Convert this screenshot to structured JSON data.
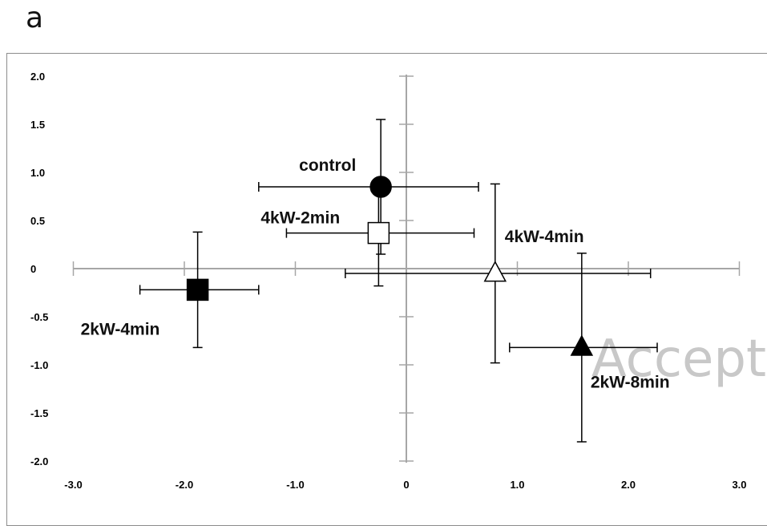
{
  "panel_label": "a",
  "watermark": "Accept",
  "chart_data": {
    "type": "scatter",
    "title": "",
    "xlabel": "",
    "ylabel": "",
    "xlim": [
      -3.0,
      3.0
    ],
    "ylim": [
      -2.0,
      2.0
    ],
    "x_ticks": [
      -3.0,
      -2.0,
      -1.0,
      0,
      1.0,
      2.0,
      3.0
    ],
    "x_tick_labels": [
      "-3.0",
      "-2.0",
      "-1.0",
      "0",
      "1.0",
      "2.0",
      "3.0"
    ],
    "y_ticks": [
      2.0,
      1.5,
      1.0,
      0.5,
      0,
      -0.5,
      -1.0,
      -1.5,
      -2.0
    ],
    "y_tick_labels": [
      "2.0",
      "1.5",
      "1.0",
      "0.5",
      "0",
      "-0.5",
      "-1.0",
      "-1.5",
      "-2.0"
    ],
    "grid": false,
    "legend": "none",
    "points": [
      {
        "label": "control",
        "marker": "circle",
        "fill": "#000000",
        "x": -0.23,
        "y": 0.85,
        "x_err_low": 1.1,
        "x_err_high": 0.88,
        "y_err_low": 0.7,
        "y_err_high": 0.7
      },
      {
        "label": "4kW-2min",
        "marker": "square",
        "fill": "#ffffff",
        "x": -0.25,
        "y": 0.37,
        "x_err_low": 0.83,
        "x_err_high": 0.86,
        "y_err_low": 0.55,
        "y_err_high": 0.55
      },
      {
        "label": "4kW-4min",
        "marker": "triangle",
        "fill": "#ffffff",
        "x": 0.8,
        "y": -0.05,
        "x_err_low": 1.35,
        "x_err_high": 1.4,
        "y_err_low": 0.93,
        "y_err_high": 0.93
      },
      {
        "label": "2kW-4min",
        "marker": "square",
        "fill": "#000000",
        "x": -1.88,
        "y": -0.22,
        "x_err_low": 0.52,
        "x_err_high": 0.55,
        "y_err_low": 0.6,
        "y_err_high": 0.6
      },
      {
        "label": "2kW-8min",
        "marker": "triangle",
        "fill": "#000000",
        "x": 1.58,
        "y": -0.82,
        "x_err_low": 0.65,
        "x_err_high": 0.68,
        "y_err_low": 0.98,
        "y_err_high": 0.98
      }
    ]
  }
}
